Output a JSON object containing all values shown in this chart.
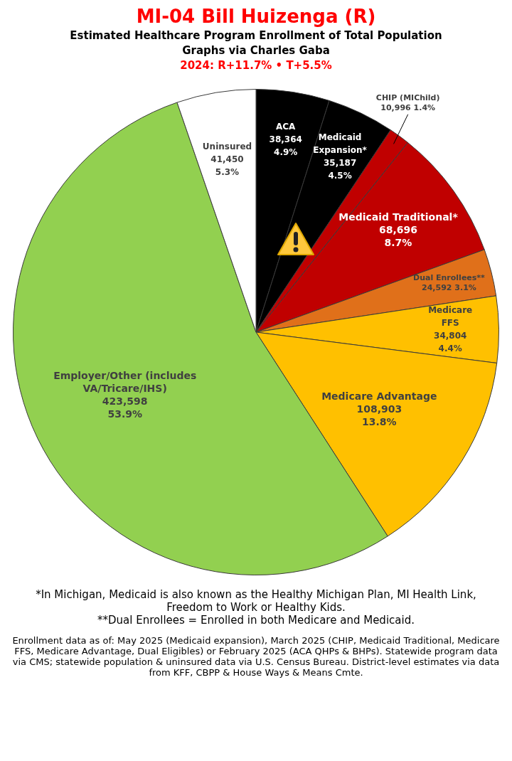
{
  "chart_data": {
    "type": "pie",
    "title": "MI-04 Bill Huizenga (R)",
    "subtitle": "Estimated Healthcare Program Enrollment of Total Population\nGraphs via Charles Gaba",
    "categories": [
      "ACA",
      "Medicaid Expansion*",
      "CHIP (MIChild)",
      "Medicaid Traditional*",
      "Dual Enrollees**",
      "Medicare FFS",
      "Medicare Advantage",
      "Employer/Other (includes VA/Tricare/IHS)",
      "Uninsured"
    ],
    "values": [
      38364,
      35187,
      10996,
      68696,
      24592,
      34804,
      108903,
      423598,
      41450
    ],
    "colors": [
      "#000000",
      "#000000",
      "#c00000",
      "#c00000",
      "#e0701a",
      "#ffc000",
      "#ffc000",
      "#92d050",
      "#ffffff"
    ],
    "value_labels": [
      "38,364 4.9%",
      "35,187 4.5%",
      "10,996 1.4%",
      "68,696 8.7%",
      "24,592 3.1%",
      "34,804 4.4%",
      "108,903 13.8%",
      "423,598 53.9%",
      "41,450 5.3%"
    ],
    "legend": false,
    "annotations": [
      "2024: R+11.7% • T+5.5%",
      "*In Michigan, Medicaid is also known as the Healthy Michigan Plan, MI Health Link, Freedom to Work or Healthy Kids.",
      "**Dual Enrollees = Enrolled in both Medicare and Medicaid.",
      "Enrollment data as of: May 2025 (Medicaid expansion), March 2025 (CHIP, Medicaid Traditional, Medicare FFS, Medicare Advantage, Dual Eligibles) or February 2025 (ACA QHPs & BHPs). Statewide program data via CMS; statewide population & uninsured data via U.S. Census Bureau. District-level estimates via data from KFF, CBPP & House Ways & Means Cmte."
    ]
  }
}
